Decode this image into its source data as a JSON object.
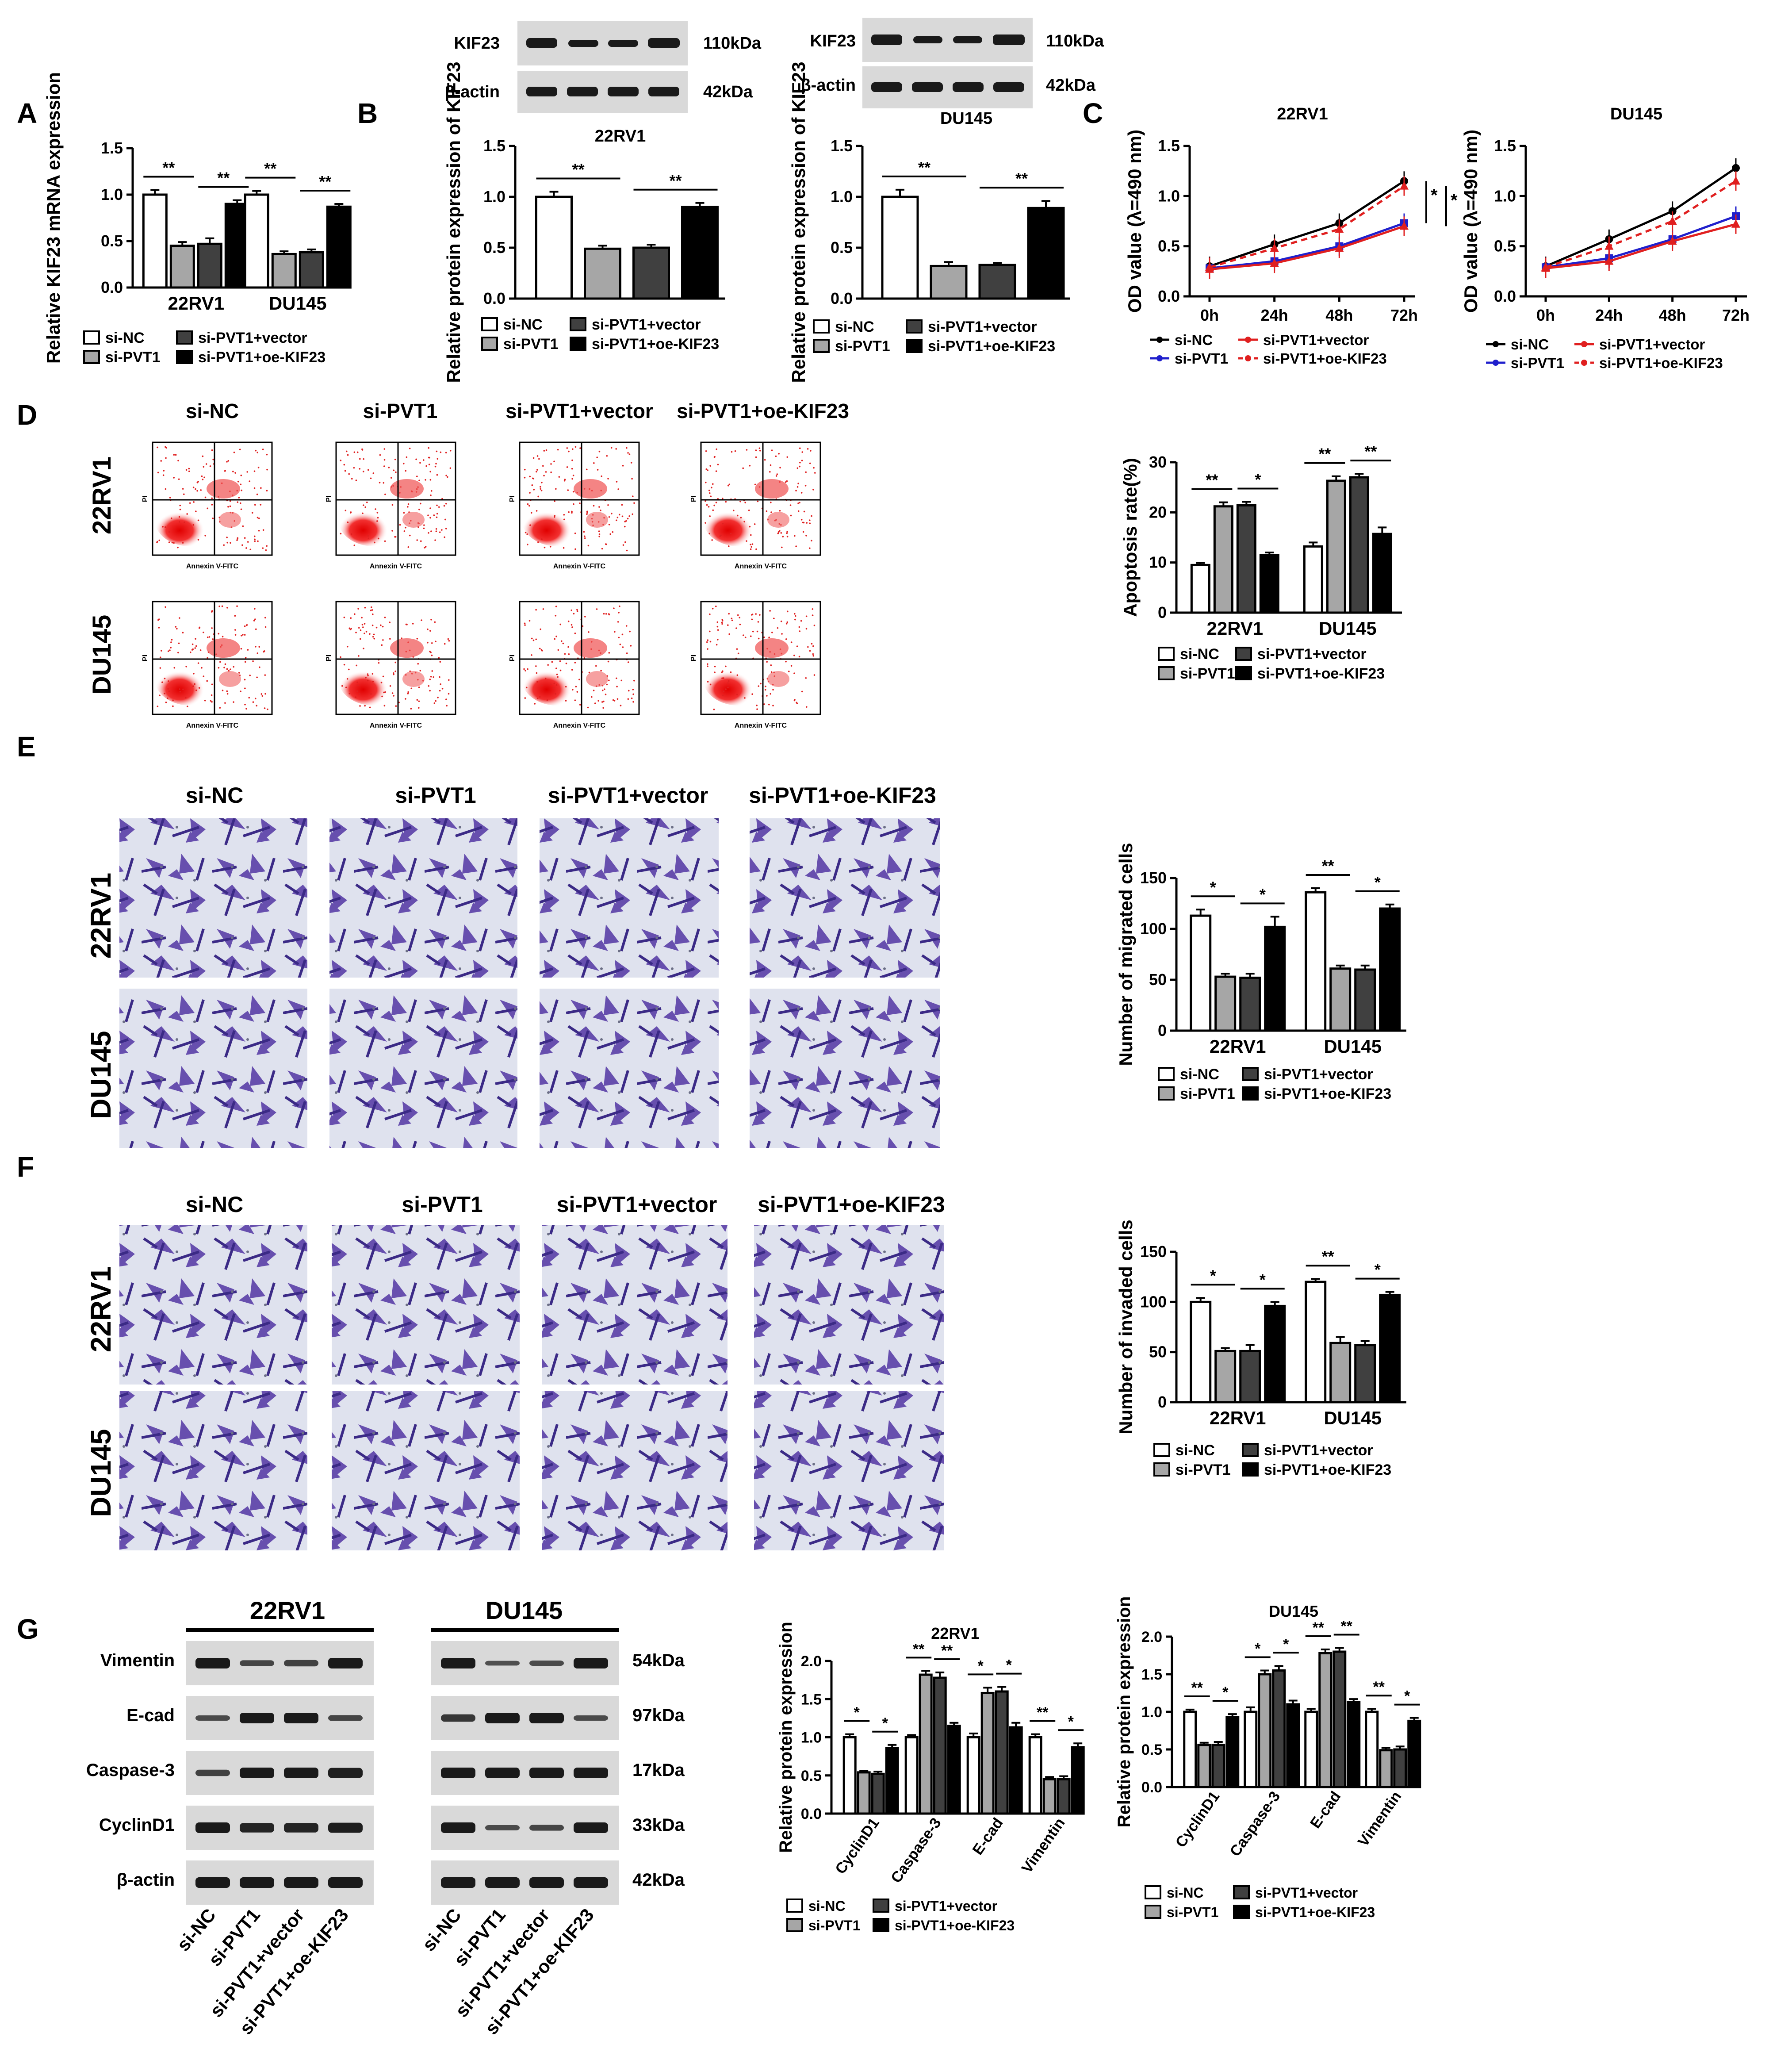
{
  "panels": {
    "A": "A",
    "B": "B",
    "C": "C",
    "D": "D",
    "E": "E",
    "F": "F",
    "G": "G"
  },
  "colors": {
    "siNC": "#ffffff",
    "siPVT1": "#a6a6a6",
    "vector": "#404040",
    "oeKIF23": "#000000",
    "lineNC": "#000000",
    "linePVT1": "#1f1fcc",
    "lineVector": "#e01f1f",
    "lineOe": "#e01f1f"
  },
  "groups": [
    "si-NC",
    "si-PVT1",
    "si-PVT1+vector",
    "si-PVT1+oe-KIF23"
  ],
  "lines": [
    "22RV1",
    "DU145"
  ],
  "legend": {
    "siNC": "si-NC",
    "siPVT1": "si-PVT1",
    "vector": "si-PVT1+vector",
    "oe": "si-PVT1+oe-KIF23"
  },
  "blots_b": {
    "left": {
      "rows": [
        {
          "label": "KIF23",
          "kda": "110kDa"
        },
        {
          "label": "β-actin",
          "kda": "42kDa"
        }
      ]
    },
    "right": {
      "rows": [
        {
          "label": "KIF23",
          "kda": "110kDa"
        },
        {
          "label": "β-actin",
          "kda": "42kDa"
        }
      ]
    }
  },
  "flow": {
    "x_axis": "Annexin V-FITC",
    "y_axis": "PI"
  },
  "blots_g": {
    "headers": [
      "22RV1",
      "DU145"
    ],
    "proteins": [
      "Vimentin",
      "E-cad",
      "Caspase-3",
      "CyclinD1",
      "β-actin"
    ],
    "kda": [
      "54kDa",
      "97kDa",
      "17kDa",
      "33kDa",
      "42kDa"
    ],
    "lanes": [
      "si-NC",
      "si-PVT1",
      "si-PVT1+vector",
      "si-PVT1+oe-KIF23"
    ]
  },
  "chart_data": [
    {
      "id": "A",
      "type": "bar",
      "ylabel": "Relative KIF23 mRNA expression",
      "ylim": [
        0,
        1.5
      ],
      "yticks": [
        0.0,
        0.5,
        1.0,
        1.5
      ],
      "categories": [
        "22RV1",
        "DU145"
      ],
      "series": [
        {
          "name": "si-NC",
          "values": [
            1.0,
            1.0
          ],
          "err": [
            0.05,
            0.04
          ]
        },
        {
          "name": "si-PVT1",
          "values": [
            0.45,
            0.36
          ],
          "err": [
            0.04,
            0.03
          ]
        },
        {
          "name": "si-PVT1+vector",
          "values": [
            0.47,
            0.38
          ],
          "err": [
            0.06,
            0.03
          ]
        },
        {
          "name": "si-PVT1+oe-KIF23",
          "values": [
            0.9,
            0.87
          ],
          "err": [
            0.04,
            0.03
          ]
        }
      ],
      "sig": [
        {
          "cat": 0,
          "from": 0,
          "to": 1,
          "text": "**"
        },
        {
          "cat": 0,
          "from": 2,
          "to": 3,
          "text": "**"
        },
        {
          "cat": 1,
          "from": 0,
          "to": 1,
          "text": "**"
        },
        {
          "cat": 1,
          "from": 2,
          "to": 3,
          "text": "**"
        }
      ]
    },
    {
      "id": "B1",
      "type": "bar",
      "title": "22RV1",
      "ylabel": "Relative protein expression of KIF23",
      "ylim": [
        0,
        1.5
      ],
      "yticks": [
        0.0,
        0.5,
        1.0,
        1.5
      ],
      "categories": [
        ""
      ],
      "series": [
        {
          "name": "si-NC",
          "values": [
            1.0
          ],
          "err": [
            0.05
          ]
        },
        {
          "name": "si-PVT1",
          "values": [
            0.49
          ],
          "err": [
            0.03
          ]
        },
        {
          "name": "si-PVT1+vector",
          "values": [
            0.5
          ],
          "err": [
            0.03
          ]
        },
        {
          "name": "si-PVT1+oe-KIF23",
          "values": [
            0.9
          ],
          "err": [
            0.04
          ]
        }
      ],
      "sig": [
        {
          "cat": 0,
          "from": 0,
          "to": 1,
          "text": "**"
        },
        {
          "cat": 0,
          "from": 2,
          "to": 3,
          "text": "**"
        }
      ]
    },
    {
      "id": "B2",
      "type": "bar",
      "title": "DU145",
      "ylabel": "Relative protein expression of KIF23",
      "ylim": [
        0,
        1.5
      ],
      "yticks": [
        0.0,
        0.5,
        1.0,
        1.5
      ],
      "categories": [
        ""
      ],
      "series": [
        {
          "name": "si-NC",
          "values": [
            1.0
          ],
          "err": [
            0.07
          ]
        },
        {
          "name": "si-PVT1",
          "values": [
            0.32
          ],
          "err": [
            0.04
          ]
        },
        {
          "name": "si-PVT1+vector",
          "values": [
            0.33
          ],
          "err": [
            0.02
          ]
        },
        {
          "name": "si-PVT1+oe-KIF23",
          "values": [
            0.89
          ],
          "err": [
            0.07
          ]
        }
      ],
      "sig": [
        {
          "cat": 0,
          "from": 0,
          "to": 1,
          "text": "**"
        },
        {
          "cat": 0,
          "from": 2,
          "to": 3,
          "text": "**"
        }
      ]
    },
    {
      "id": "C1",
      "type": "line",
      "title": "22RV1",
      "ylabel": "OD value (λ=490 nm)",
      "ylim": [
        0,
        1.5
      ],
      "yticks": [
        0.0,
        0.5,
        1.0,
        1.5
      ],
      "x": [
        "0h",
        "24h",
        "48h",
        "72h"
      ],
      "series": [
        {
          "name": "si-NC",
          "values": [
            0.3,
            0.52,
            0.73,
            1.15
          ]
        },
        {
          "name": "si-PVT1",
          "values": [
            0.28,
            0.35,
            0.5,
            0.73
          ]
        },
        {
          "name": "si-PVT1+vector",
          "values": [
            0.27,
            0.33,
            0.48,
            0.7
          ]
        },
        {
          "name": "si-PVT1+oe-KIF23",
          "values": [
            0.29,
            0.48,
            0.67,
            1.1
          ]
        }
      ],
      "sig_text": [
        "*",
        "*"
      ]
    },
    {
      "id": "C2",
      "type": "line",
      "title": "DU145",
      "ylabel": "OD value (λ=490 nm)",
      "ylim": [
        0,
        1.5
      ],
      "yticks": [
        0.0,
        0.5,
        1.0,
        1.5
      ],
      "x": [
        "0h",
        "24h",
        "48h",
        "72h"
      ],
      "series": [
        {
          "name": "si-NC",
          "values": [
            0.3,
            0.57,
            0.85,
            1.28
          ]
        },
        {
          "name": "si-PVT1",
          "values": [
            0.29,
            0.38,
            0.57,
            0.8
          ]
        },
        {
          "name": "si-PVT1+vector",
          "values": [
            0.28,
            0.35,
            0.55,
            0.72
          ]
        },
        {
          "name": "si-PVT1+oe-KIF23",
          "values": [
            0.29,
            0.5,
            0.75,
            1.15
          ]
        }
      ]
    },
    {
      "id": "D",
      "type": "bar",
      "ylabel": "Apoptosis rate(%)",
      "ylim": [
        0,
        30
      ],
      "yticks": [
        0,
        10,
        20,
        30
      ],
      "categories": [
        "22RV1",
        "DU145"
      ],
      "series": [
        {
          "name": "si-NC",
          "values": [
            9.5,
            13.2
          ],
          "err": [
            0.4,
            0.8
          ]
        },
        {
          "name": "si-PVT1",
          "values": [
            21.2,
            26.3
          ],
          "err": [
            0.8,
            0.9
          ]
        },
        {
          "name": "si-PVT1+vector",
          "values": [
            21.4,
            27.0
          ],
          "err": [
            0.7,
            0.7
          ]
        },
        {
          "name": "si-PVT1+oe-KIF23",
          "values": [
            11.5,
            15.7
          ],
          "err": [
            0.5,
            1.3
          ]
        }
      ],
      "sig": [
        {
          "cat": 0,
          "from": 0,
          "to": 1,
          "text": "**"
        },
        {
          "cat": 0,
          "from": 2,
          "to": 3,
          "text": "*"
        },
        {
          "cat": 1,
          "from": 0,
          "to": 1,
          "text": "**"
        },
        {
          "cat": 1,
          "from": 2,
          "to": 3,
          "text": "**"
        }
      ]
    },
    {
      "id": "E",
      "type": "bar",
      "ylabel": "Number of migrated cells",
      "ylim": [
        0,
        150
      ],
      "yticks": [
        0,
        50,
        100,
        150
      ],
      "categories": [
        "22RV1",
        "DU145"
      ],
      "series": [
        {
          "name": "si-NC",
          "values": [
            113,
            136
          ],
          "err": [
            6,
            4
          ]
        },
        {
          "name": "si-PVT1",
          "values": [
            53,
            61
          ],
          "err": [
            3,
            3
          ]
        },
        {
          "name": "si-PVT1+vector",
          "values": [
            52,
            60
          ],
          "err": [
            4,
            4
          ]
        },
        {
          "name": "si-PVT1+oe-KIF23",
          "values": [
            102,
            120
          ],
          "err": [
            10,
            4
          ]
        }
      ],
      "sig": [
        {
          "cat": 0,
          "from": 0,
          "to": 1,
          "text": "*"
        },
        {
          "cat": 0,
          "from": 2,
          "to": 3,
          "text": "*"
        },
        {
          "cat": 1,
          "from": 0,
          "to": 1,
          "text": "**"
        },
        {
          "cat": 1,
          "from": 2,
          "to": 3,
          "text": "*"
        }
      ]
    },
    {
      "id": "F",
      "type": "bar",
      "ylabel": "Number of invaded cells",
      "ylim": [
        0,
        150
      ],
      "yticks": [
        0,
        50,
        100,
        150
      ],
      "categories": [
        "22RV1",
        "DU145"
      ],
      "series": [
        {
          "name": "si-NC",
          "values": [
            100,
            120
          ],
          "err": [
            4,
            3
          ]
        },
        {
          "name": "si-PVT1",
          "values": [
            51,
            59
          ],
          "err": [
            3,
            6
          ]
        },
        {
          "name": "si-PVT1+vector",
          "values": [
            51,
            57
          ],
          "err": [
            6,
            4
          ]
        },
        {
          "name": "si-PVT1+oe-KIF23",
          "values": [
            96,
            107
          ],
          "err": [
            4,
            3
          ]
        }
      ],
      "sig": [
        {
          "cat": 0,
          "from": 0,
          "to": 1,
          "text": "*"
        },
        {
          "cat": 0,
          "from": 2,
          "to": 3,
          "text": "*"
        },
        {
          "cat": 1,
          "from": 0,
          "to": 1,
          "text": "**"
        },
        {
          "cat": 1,
          "from": 2,
          "to": 3,
          "text": "*"
        }
      ]
    },
    {
      "id": "G1",
      "type": "bar",
      "title": "22RV1",
      "ylabel": "Relative  protein expression",
      "ylim": [
        0,
        2.0
      ],
      "yticks": [
        0.0,
        0.5,
        1.0,
        1.5,
        2.0
      ],
      "categories": [
        "CyclinD1",
        "Caspase-3",
        "E-cad",
        "Vimentin"
      ],
      "series": [
        {
          "name": "si-NC",
          "values": [
            1.0,
            1.0,
            1.0,
            1.0
          ],
          "err": [
            0.04,
            0.03,
            0.05,
            0.04
          ]
        },
        {
          "name": "si-PVT1",
          "values": [
            0.54,
            1.82,
            1.58,
            0.45
          ],
          "err": [
            0.02,
            0.05,
            0.07,
            0.03
          ]
        },
        {
          "name": "si-PVT1+vector",
          "values": [
            0.52,
            1.78,
            1.6,
            0.45
          ],
          "err": [
            0.03,
            0.07,
            0.06,
            0.04
          ]
        },
        {
          "name": "si-PVT1+oe-KIF23",
          "values": [
            0.86,
            1.15,
            1.13,
            0.87
          ],
          "err": [
            0.04,
            0.04,
            0.06,
            0.05
          ]
        }
      ],
      "sig": [
        {
          "cat": 0,
          "from": 0,
          "to": 1,
          "text": "*"
        },
        {
          "cat": 0,
          "from": 2,
          "to": 3,
          "text": "*"
        },
        {
          "cat": 1,
          "from": 0,
          "to": 1,
          "text": "**"
        },
        {
          "cat": 1,
          "from": 2,
          "to": 3,
          "text": "**"
        },
        {
          "cat": 2,
          "from": 0,
          "to": 1,
          "text": "*"
        },
        {
          "cat": 2,
          "from": 2,
          "to": 3,
          "text": "*"
        },
        {
          "cat": 3,
          "from": 0,
          "to": 1,
          "text": "**"
        },
        {
          "cat": 3,
          "from": 2,
          "to": 3,
          "text": "*"
        }
      ]
    },
    {
      "id": "G2",
      "type": "bar",
      "title": "DU145",
      "ylabel": "Relative  protein expression",
      "ylim": [
        0,
        2.0
      ],
      "yticks": [
        0.0,
        0.5,
        1.0,
        1.5,
        2.0
      ],
      "categories": [
        "CyclinD1",
        "Caspase-3",
        "E-cad",
        "Vimentin"
      ],
      "series": [
        {
          "name": "si-NC",
          "values": [
            1.0,
            1.0,
            1.0,
            1.0
          ],
          "err": [
            0.03,
            0.06,
            0.04,
            0.04
          ]
        },
        {
          "name": "si-PVT1",
          "values": [
            0.56,
            1.5,
            1.78,
            0.49
          ],
          "err": [
            0.03,
            0.05,
            0.05,
            0.03
          ]
        },
        {
          "name": "si-PVT1+vector",
          "values": [
            0.56,
            1.55,
            1.8,
            0.5
          ],
          "err": [
            0.04,
            0.06,
            0.05,
            0.04
          ]
        },
        {
          "name": "si-PVT1+oe-KIF23",
          "values": [
            0.93,
            1.1,
            1.13,
            0.88
          ],
          "err": [
            0.04,
            0.05,
            0.04,
            0.04
          ]
        }
      ],
      "sig": [
        {
          "cat": 0,
          "from": 0,
          "to": 1,
          "text": "**"
        },
        {
          "cat": 0,
          "from": 2,
          "to": 3,
          "text": "*"
        },
        {
          "cat": 1,
          "from": 0,
          "to": 1,
          "text": "*"
        },
        {
          "cat": 1,
          "from": 2,
          "to": 3,
          "text": "*"
        },
        {
          "cat": 2,
          "from": 0,
          "to": 1,
          "text": "**"
        },
        {
          "cat": 2,
          "from": 2,
          "to": 3,
          "text": "**"
        },
        {
          "cat": 3,
          "from": 0,
          "to": 1,
          "text": "**"
        },
        {
          "cat": 3,
          "from": 2,
          "to": 3,
          "text": "*"
        }
      ]
    }
  ]
}
